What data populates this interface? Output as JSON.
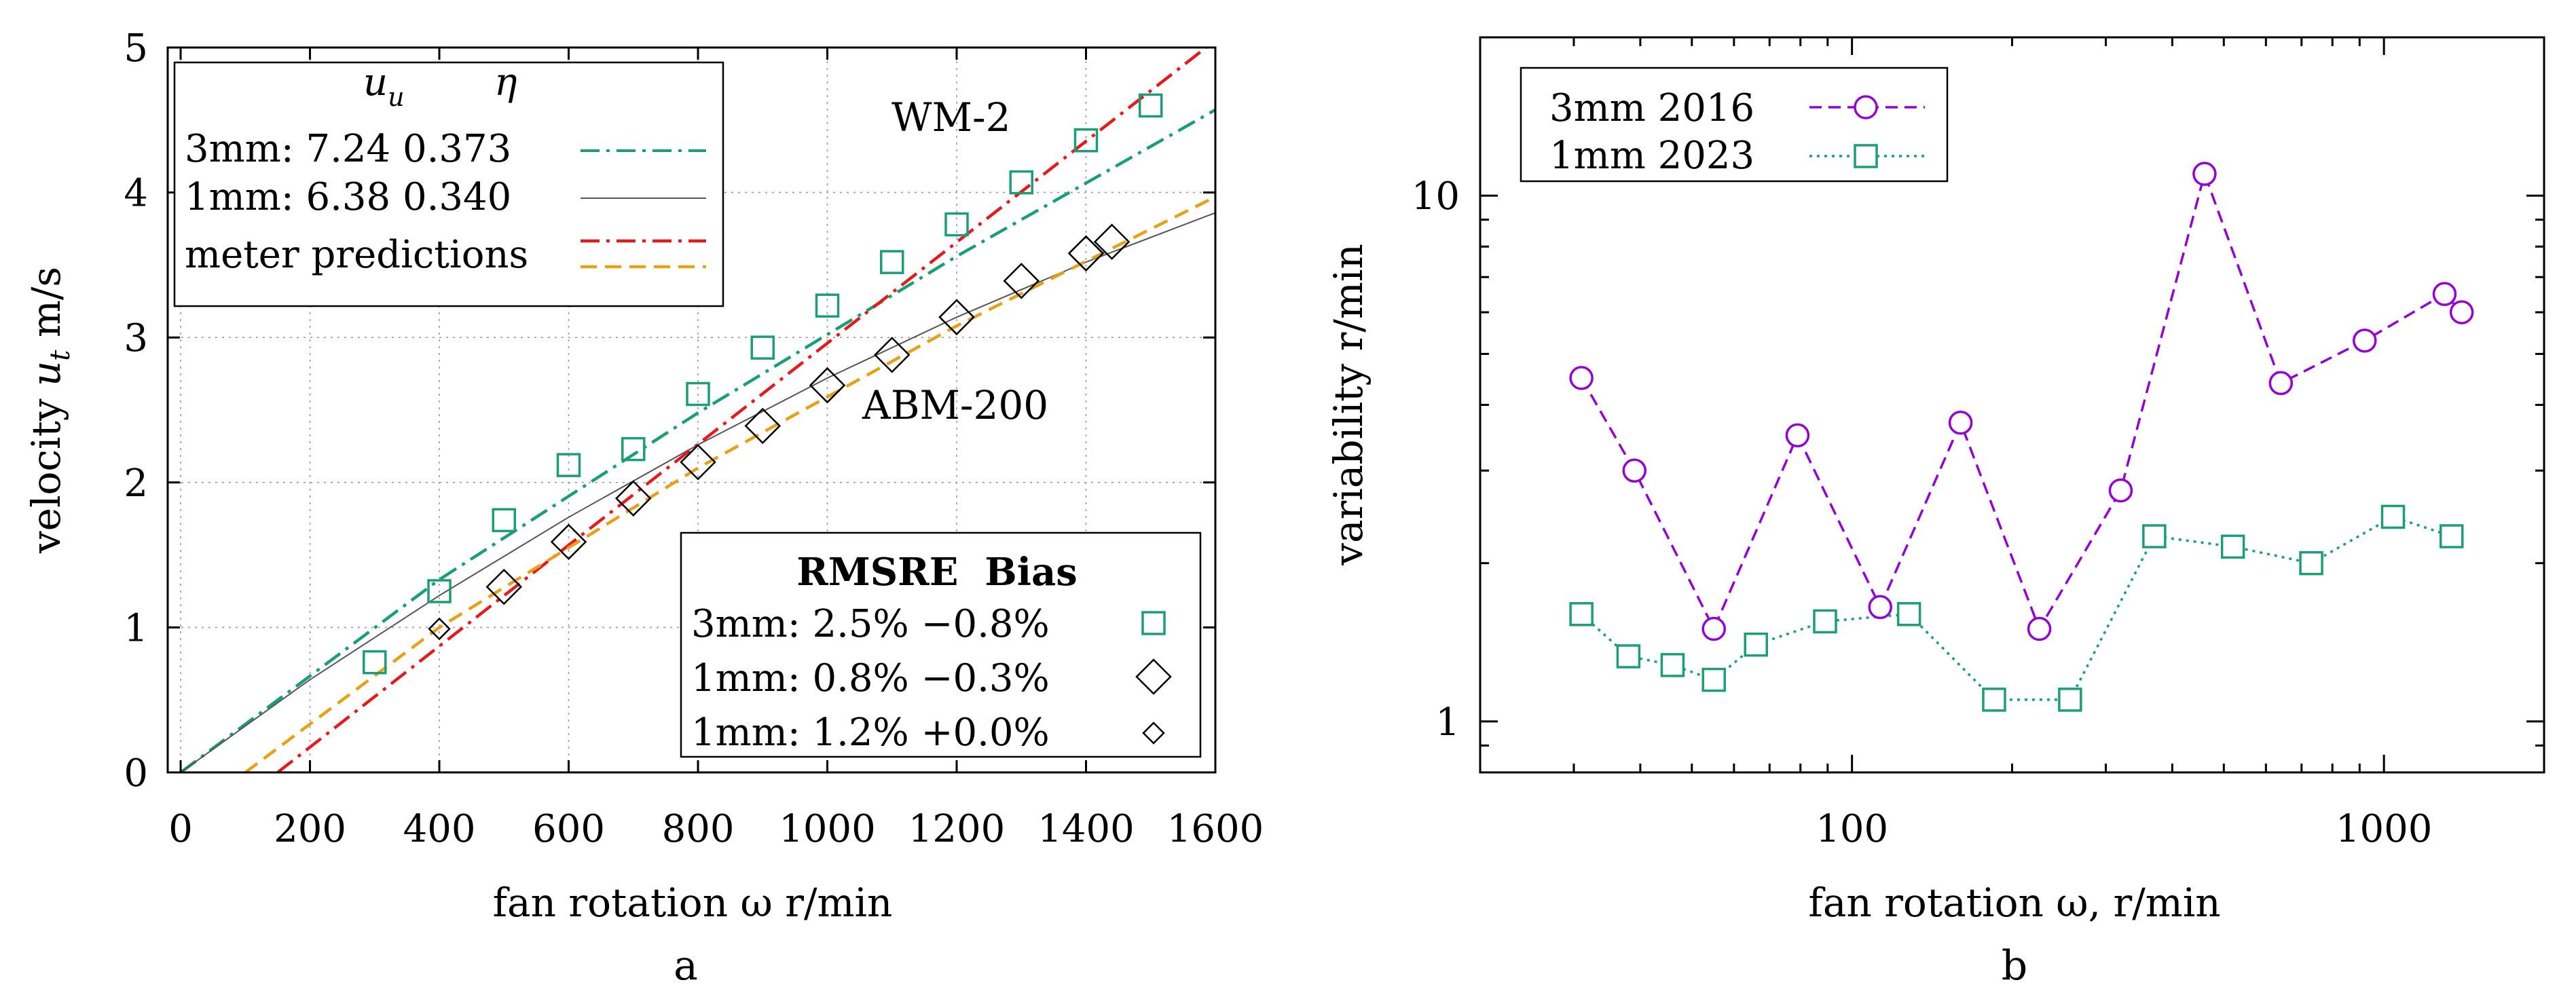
{
  "chart_data": [
    {
      "type": "scatter",
      "panel_label": "a",
      "xlabel": "fan rotation  ω  r/min",
      "ylabel": "velocity  u_t  m/s",
      "xlim": [
        -20,
        1600
      ],
      "ylim": [
        0,
        5
      ],
      "xticks": [
        "0",
        "200",
        "400",
        "600",
        "800",
        "1000",
        "1200",
        "1400",
        "1600"
      ],
      "yticks": [
        "0",
        "1",
        "2",
        "3",
        "4",
        "5"
      ],
      "grid": true,
      "legend_fit": {
        "position": "top-left",
        "header": {
          "symbol": "u",
          "subscript": "u",
          "eta": "η"
        },
        "entries": [
          {
            "label": "3mm: 7.24  0.373",
            "style": "dash-dot",
            "color": "#1b9e77"
          },
          {
            "label": "1mm: 6.38  0.340",
            "style": "solid-thin",
            "color": "#555555"
          },
          {
            "label": "meter predictions",
            "style": "dash-dot + dashed",
            "colors": [
              "#e41a1c",
              "#e6a117"
            ]
          }
        ]
      },
      "legend_error": {
        "position": "bottom-right",
        "header": "RMSRE  Bias",
        "entries": [
          {
            "label": "3mm: 2.5% −0.8%",
            "marker": "square",
            "color": "#1b9e77"
          },
          {
            "label": "1mm: 0.8% −0.3%",
            "marker": "diamond-large",
            "color": "#000000"
          },
          {
            "label": "1mm: 1.2% +0.0%",
            "marker": "diamond-small",
            "color": "#000000"
          }
        ]
      },
      "annotations": [
        "WM-2",
        "ABM-200"
      ],
      "series": [
        {
          "marker": "square",
          "color": "#1b9e77",
          "x": [
            300,
            400,
            500,
            600,
            700,
            800,
            900,
            1000,
            1100,
            1200,
            1300,
            1400,
            1500
          ],
          "y": [
            0.76,
            1.25,
            1.74,
            2.12,
            2.23,
            2.61,
            2.93,
            3.22,
            3.52,
            3.78,
            4.07,
            4.36,
            4.6
          ]
        },
        {
          "marker": "diamond-large",
          "color": "#000000",
          "x": [
            500,
            600,
            700,
            800,
            900,
            1000,
            1100,
            1200,
            1300,
            1400,
            1440
          ],
          "y": [
            1.28,
            1.59,
            1.89,
            2.14,
            2.39,
            2.67,
            2.88,
            3.14,
            3.39,
            3.58,
            3.66
          ]
        },
        {
          "marker": "diamond-small",
          "color": "#000000",
          "x": [
            400
          ],
          "y": [
            0.99
          ]
        },
        {
          "line": "dash-dot",
          "color": "#1b9e77",
          "x": [
            0,
            400,
            800,
            1200,
            1600
          ],
          "y": [
            0.0,
            1.33,
            2.48,
            3.56,
            4.57
          ]
        },
        {
          "line": "solid-thin",
          "color": "#555555",
          "x": [
            0,
            200,
            400,
            600,
            800,
            1000,
            1200,
            1400,
            1600
          ],
          "y": [
            0.0,
            0.64,
            1.22,
            1.76,
            2.26,
            2.72,
            3.14,
            3.52,
            3.86
          ]
        },
        {
          "line": "dash-dot",
          "color": "#e41a1c",
          "x": [
            150,
            1600
          ],
          "y": [
            0.0,
            5.05
          ]
        },
        {
          "line": "dashed",
          "color": "#e6a117",
          "x": [
            100,
            400,
            800,
            1200,
            1600
          ],
          "y": [
            0.0,
            1.0,
            2.1,
            3.08,
            3.97
          ]
        }
      ]
    },
    {
      "type": "line",
      "panel_label": "b",
      "xlabel": "fan rotation ω, r/min",
      "ylabel": "variability r/min",
      "xscale": "log",
      "yscale": "log",
      "xlim": [
        20,
        2000
      ],
      "ylim": [
        0.8,
        20
      ],
      "xticks": [
        "100",
        "1000"
      ],
      "yticks": [
        "1",
        "10"
      ],
      "grid": false,
      "legend_position": "top-left",
      "series": [
        {
          "name": "3mm 2016",
          "marker": "circle",
          "line": "dashed",
          "color": "#9400d3",
          "x": [
            31,
            39,
            55,
            79,
            113,
            160,
            225,
            320,
            460,
            640,
            920,
            1300,
            1400
          ],
          "y": [
            4.5,
            3.0,
            1.5,
            3.5,
            1.65,
            3.7,
            1.5,
            2.75,
            11.0,
            4.4,
            5.3,
            6.5,
            6.0
          ]
        },
        {
          "name": "1mm 2023",
          "marker": "square",
          "line": "dotted",
          "color": "#1b9e77",
          "x": [
            31,
            38,
            46,
            55,
            66,
            89,
            128,
            185,
            257,
            370,
            520,
            730,
            1040,
            1340
          ],
          "y": [
            1.6,
            1.33,
            1.28,
            1.2,
            1.4,
            1.55,
            1.6,
            1.1,
            1.1,
            2.25,
            2.15,
            2.0,
            2.45,
            2.25
          ]
        }
      ]
    }
  ]
}
